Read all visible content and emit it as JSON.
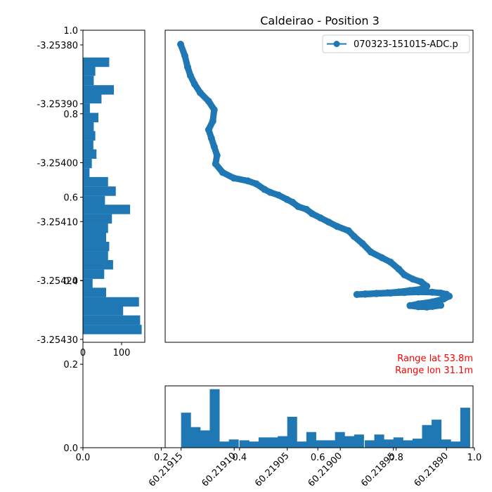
{
  "title": "Caldeirao - Position 3",
  "annotations": {
    "range_lat": "Range lat 53.8m",
    "range_lon": "Range lon 31.1m",
    "color": "#ff0000"
  },
  "chart_data": [
    {
      "type": "scatter",
      "panel": "track",
      "legend": {
        "label": "070323-151015-ADC.p",
        "placement": "top-right"
      },
      "series": [
        {
          "name": "070323-151015-ADC.p",
          "color": "#1f77b4",
          "marker": "circle",
          "x": [
            0,
            0.015,
            0.025,
            0.035,
            0.05,
            0.07,
            0.1,
            0.12,
            0.115,
            0.1,
            0.11,
            0.12,
            0.13,
            0.125,
            0.15,
            0.19,
            0.24,
            0.27,
            0.3,
            0.32,
            0.35,
            0.38,
            0.4,
            0.42,
            0.45,
            0.47,
            0.5,
            0.53,
            0.56,
            0.6,
            0.62,
            0.65,
            0.68,
            0.72,
            0.75,
            0.78,
            0.8,
            0.83,
            0.86,
            0.88,
            0.86,
            0.82,
            0.78,
            0.74,
            0.7,
            0.66,
            0.63,
            0.66,
            0.7,
            0.75,
            0.8,
            0.85,
            0.9,
            0.93,
            0.95,
            0.96,
            0.94,
            0.9,
            0.85,
            0.82,
            0.85,
            0.88,
            0.9,
            0.93
          ],
          "y": [
            1.0,
            0.96,
            0.92,
            0.89,
            0.86,
            0.83,
            0.8,
            0.77,
            0.73,
            0.7,
            0.67,
            0.64,
            0.61,
            0.58,
            0.55,
            0.53,
            0.52,
            0.51,
            0.49,
            0.48,
            0.47,
            0.455,
            0.445,
            0.43,
            0.42,
            0.405,
            0.39,
            0.375,
            0.36,
            0.345,
            0.325,
            0.3,
            0.27,
            0.25,
            0.235,
            0.21,
            0.19,
            0.175,
            0.165,
            0.15,
            0.14,
            0.135,
            0.13,
            0.127,
            0.125,
            0.123,
            0.121,
            0.122,
            0.124,
            0.126,
            0.128,
            0.13,
            0.129,
            0.126,
            0.122,
            0.115,
            0.105,
            0.095,
            0.088,
            0.082,
            0.078,
            0.077,
            0.079,
            0.083
          ]
        }
      ]
    },
    {
      "type": "bar",
      "panel": "latitude-histogram",
      "orientation": "horizontal",
      "color": "#1f77b4",
      "xlim": [
        0,
        160
      ],
      "xticks": [
        "0",
        "100"
      ],
      "ylim": [
        -3.254305,
        -3.253775
      ],
      "yticks": [
        "-3.25380",
        "-3.25390",
        "-3.25400",
        "-3.25410",
        "-3.25420",
        "-3.25430"
      ],
      "bin_width": 1.568e-05,
      "bin_starts": [
        -3.254291,
        -3.254275,
        -3.254259,
        -3.254244,
        -3.254228,
        -3.254213,
        -3.254197,
        -3.254181,
        -3.254166,
        -3.25415,
        -3.254134,
        -3.254119,
        -3.254103,
        -3.254087,
        -3.254072,
        -3.254056,
        -3.25404,
        -3.254025,
        -3.254009,
        -3.253993,
        -3.253978,
        -3.253962,
        -3.253946,
        -3.253931,
        -3.253915,
        -3.253899,
        -3.253884,
        -3.253868,
        -3.253852,
        -3.253837
      ],
      "counts": [
        152,
        148,
        104,
        145,
        60,
        25,
        55,
        78,
        65,
        68,
        60,
        65,
        75,
        122,
        57,
        85,
        65,
        17,
        23,
        35,
        27,
        32,
        28,
        40,
        18,
        48,
        80,
        28,
        32,
        68
      ]
    },
    {
      "type": "bar",
      "panel": "longitude-histogram",
      "orientation": "vertical",
      "color": "#1f77b4",
      "xlim": [
        -60.219165,
        -60.218875
      ],
      "xticks": [
        "60.21915",
        "60.21910",
        "60.21905",
        "60.21900",
        "60.21895",
        "60.21890"
      ],
      "ylim": [
        0,
        150
      ],
      "bin_width": 9.1e-06,
      "bin_starts": [
        -60.21915,
        -60.219141,
        -60.219132,
        -60.219123,
        -60.219114,
        -60.219105,
        -60.219095,
        -60.219086,
        -60.219077,
        -60.219068,
        -60.219059,
        -60.21905,
        -60.219041,
        -60.219032,
        -60.219023,
        -60.219014,
        -60.219005,
        -60.218996,
        -60.218987,
        -60.218977,
        -60.218968,
        -60.218959,
        -60.21895,
        -60.218941,
        -60.218932,
        -60.218923,
        -60.218914,
        -60.218905,
        -60.218896,
        -60.218887
      ],
      "counts": [
        85,
        50,
        42,
        142,
        15,
        20,
        18,
        15,
        25,
        25,
        28,
        75,
        15,
        38,
        18,
        18,
        38,
        28,
        32,
        18,
        32,
        20,
        25,
        18,
        22,
        55,
        68,
        20,
        15,
        97
      ]
    },
    {
      "type": "line",
      "panel": "empty-axes",
      "xlim": [
        0,
        1
      ],
      "ylim": [
        0,
        1
      ],
      "xticks": [
        "0.0",
        "0.2",
        "0.4",
        "0.6",
        "0.8",
        "1.0"
      ],
      "yticks": [
        "0.0",
        "0.2",
        "0.4",
        "0.6",
        "0.8",
        "1.0"
      ],
      "series": []
    }
  ]
}
